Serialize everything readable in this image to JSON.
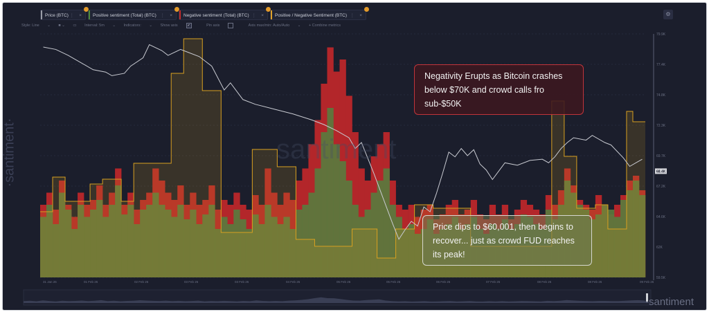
{
  "metrics_tabs": [
    {
      "label": "Price (BTC)",
      "color": "#9a9da8"
    },
    {
      "label": "Positive sentiment (Total) (BTC)",
      "color": "#4f8a3a"
    },
    {
      "label": "Negative sentiment (Total) (BTC)",
      "color": "#c42a2a"
    },
    {
      "label": "Positive / Negative Sentiment (BTC)",
      "color": "#e0a22a"
    }
  ],
  "toolbar": {
    "style": "Style: Line",
    "interval": "Interval: 5m",
    "indicators": "Indicators:",
    "show_axis": "Show axis",
    "pin_axis": "Pin axis",
    "axis_minmax": "Axis max/min: Auto/Auto",
    "combine": "+ Combine metrics"
  },
  "watermark": "·santiment·",
  "watermark_center": "santiment",
  "watermark_bottom": "·santiment",
  "annotations": {
    "negativity": "Negativity Erupts as Bitcoin crashes below $70K and crowd calls fro sub-$50K",
    "price_dip": "Price dips to $60,001, then begins to recover... just as crowd FUD reaches its peak!"
  },
  "chart_data": {
    "type": "bar",
    "y_axis": {
      "label": "",
      "ticks": [
        "79.9K",
        "77.4K",
        "74.8K",
        "72.3K",
        "69.7K",
        "67.2K",
        "64.6K",
        "62K",
        "59.5K"
      ],
      "range": [
        59500,
        79900
      ],
      "position": "right"
    },
    "current_price_label": "68.4K",
    "x_ticks": [
      "31 Jan 26",
      "01 Feb 26",
      "02 Feb 26",
      "03 Feb 26",
      "03 Feb 26",
      "04 Feb 26",
      "05 Feb 26",
      "05 Feb 26",
      "06 Feb 26",
      "07 Feb 26",
      "08 Feb 26",
      "08 Feb 26",
      "09 Feb 26"
    ],
    "grid": true,
    "series": [
      {
        "name": "Price (BTC)",
        "type": "line",
        "color": "#c9cbd2",
        "points": [
          [
            0,
            78800
          ],
          [
            2,
            78600
          ],
          [
            4,
            78100
          ],
          [
            6,
            77500
          ],
          [
            8,
            76900
          ],
          [
            10,
            76700
          ],
          [
            11,
            76400
          ],
          [
            13,
            76600
          ],
          [
            14,
            77200
          ],
          [
            16,
            77900
          ],
          [
            17,
            79000
          ],
          [
            19,
            78500
          ],
          [
            20,
            78100
          ],
          [
            22,
            78600
          ],
          [
            23,
            78400
          ],
          [
            25,
            78000
          ],
          [
            27,
            77200
          ],
          [
            29,
            75200
          ],
          [
            30,
            75800
          ],
          [
            32,
            74400
          ],
          [
            34,
            74000
          ],
          [
            37,
            73600
          ],
          [
            40,
            73200
          ],
          [
            43,
            72700
          ],
          [
            45,
            72300
          ],
          [
            47,
            71800
          ],
          [
            49,
            71200
          ],
          [
            50,
            70300
          ],
          [
            51,
            70800
          ],
          [
            52,
            69500
          ],
          [
            53,
            68200
          ],
          [
            54,
            66800
          ],
          [
            55,
            65400
          ],
          [
            56,
            64000
          ],
          [
            57,
            62700
          ],
          [
            58,
            63500
          ],
          [
            59,
            64200
          ],
          [
            60,
            63800
          ],
          [
            61,
            65400
          ],
          [
            62,
            65000
          ],
          [
            63,
            66500
          ],
          [
            64,
            68200
          ],
          [
            65,
            70000
          ],
          [
            66,
            69600
          ],
          [
            67,
            70300
          ],
          [
            68,
            69700
          ],
          [
            69,
            70200
          ],
          [
            70,
            69000
          ],
          [
            71,
            68500
          ],
          [
            72,
            67700
          ],
          [
            73,
            68400
          ],
          [
            74,
            69100
          ],
          [
            76,
            68900
          ],
          [
            78,
            69300
          ],
          [
            80,
            69400
          ],
          [
            81,
            69100
          ],
          [
            82,
            69600
          ],
          [
            83,
            70300
          ],
          [
            84,
            70800
          ],
          [
            85,
            71200
          ],
          [
            87,
            71000
          ],
          [
            88,
            71400
          ],
          [
            90,
            70800
          ],
          [
            91,
            70600
          ],
          [
            93,
            69500
          ],
          [
            94,
            68800
          ],
          [
            95,
            69100
          ],
          [
            96,
            69400
          ]
        ]
      },
      {
        "name": "Positive sentiment (Total) (BTC)",
        "type": "bar",
        "color": "#5a7a3e",
        "values": [
          25,
          30,
          22,
          35,
          28,
          20,
          30,
          25,
          28,
          32,
          25,
          30,
          38,
          26,
          30,
          22,
          28,
          30,
          35,
          30,
          28,
          25,
          30,
          24,
          28,
          22,
          26,
          30,
          20,
          25,
          22,
          28,
          24,
          20,
          26,
          22,
          30,
          25,
          22,
          25,
          20,
          28,
          30,
          35,
          45,
          60,
          70,
          55,
          48,
          40,
          30,
          25,
          28,
          35,
          40,
          45,
          30,
          25,
          20,
          22,
          18,
          20,
          24,
          18,
          20,
          22,
          25,
          20,
          22,
          25,
          20,
          18,
          22,
          20,
          24,
          20,
          22,
          26,
          25,
          22,
          20,
          28,
          24,
          30,
          40,
          35,
          30,
          28,
          24,
          26,
          30,
          28,
          25,
          32,
          36,
          40,
          34
        ]
      },
      {
        "name": "Negative sentiment (Total) (BTC)",
        "type": "bar",
        "color": "#b3262a",
        "values": [
          30,
          35,
          28,
          40,
          30,
          25,
          35,
          30,
          32,
          38,
          30,
          35,
          45,
          30,
          35,
          28,
          32,
          35,
          45,
          40,
          35,
          32,
          38,
          30,
          35,
          30,
          32,
          38,
          28,
          32,
          30,
          35,
          30,
          28,
          34,
          30,
          45,
          35,
          30,
          35,
          32,
          40,
          45,
          55,
          65,
          80,
          95,
          85,
          90,
          75,
          60,
          45,
          40,
          50,
          55,
          60,
          40,
          30,
          28,
          30,
          25,
          28,
          30,
          24,
          26,
          30,
          32,
          26,
          28,
          32,
          26,
          24,
          30,
          26,
          30,
          24,
          28,
          32,
          30,
          28,
          26,
          34,
          30,
          36,
          45,
          38,
          32,
          30,
          28,
          34,
          30,
          26,
          30,
          34,
          40,
          42,
          36
        ]
      },
      {
        "name": "Positive / Negative Sentiment (BTC)",
        "type": "step",
        "color": "#d9a020",
        "values": [
          0.95,
          0.95,
          1.45,
          1.45,
          1.1,
          1.1,
          1.1,
          1.1,
          1.35,
          1.35,
          1.42,
          1.42,
          1.42,
          1.1,
          1.1,
          1.65,
          1.65,
          1.65,
          1.65,
          1.65,
          1.65,
          2.95,
          2.95,
          3.45,
          3.45,
          3.45,
          2.7,
          2.7,
          2.7,
          0.65,
          0.65,
          0.65,
          0.65,
          0.65,
          1.85,
          1.85,
          1.85,
          1.85,
          1.6,
          1.6,
          1.6,
          0.55,
          0.55,
          0.55,
          0.45,
          0.45,
          0.45,
          0.45,
          0.45,
          0.45,
          0.7,
          0.7,
          0.7,
          0.7,
          0.28,
          0.28,
          0.28,
          0.7,
          0.7,
          0.7,
          1.05,
          1.05,
          1.05,
          1.0,
          1.0,
          1.0,
          1.0,
          1.0,
          1.0,
          0.45,
          0.45,
          0.45,
          0.45,
          0.45,
          0.45,
          0.45,
          0.45,
          0.45,
          0.45,
          0.45,
          0.45,
          0.45,
          2.55,
          2.55,
          1.75,
          1.75,
          1.0,
          1.0,
          1.0,
          1.05,
          1.05,
          0.7,
          0.7,
          0.7,
          2.4,
          2.25,
          2.25
        ]
      }
    ]
  }
}
